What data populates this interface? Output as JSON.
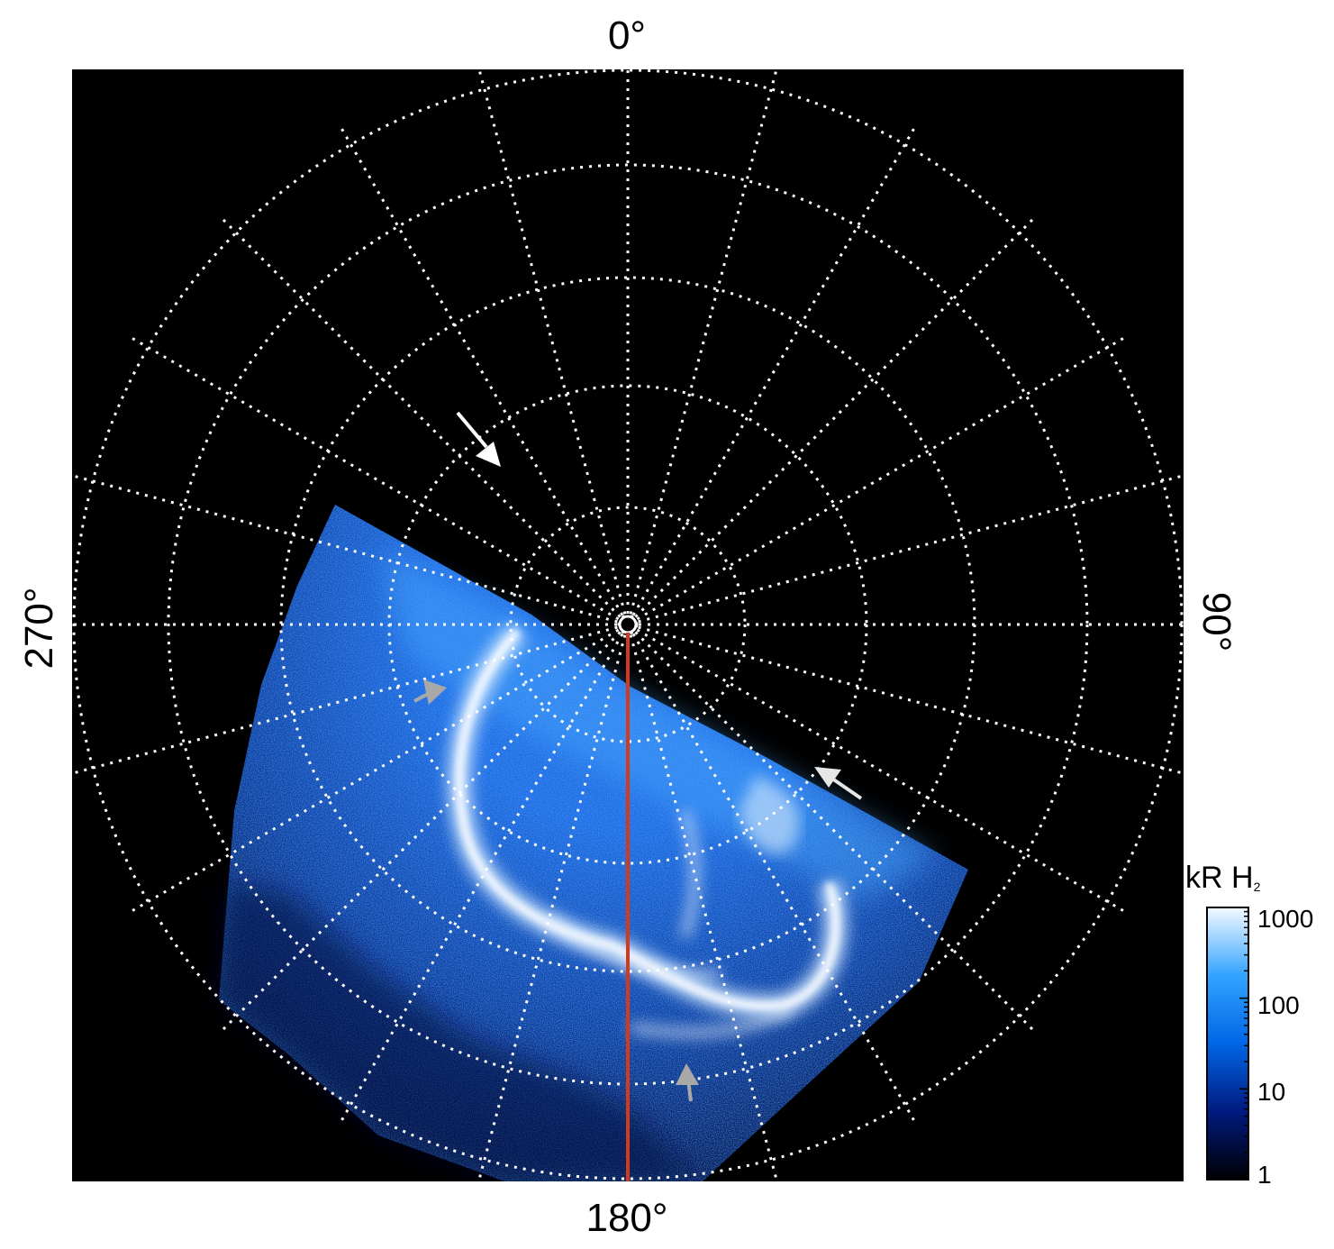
{
  "labels": {
    "top": "0°",
    "right": "90°",
    "bottom": "180°",
    "left": "270°"
  },
  "colorbar": {
    "title": "kR H",
    "subscript": "2",
    "ticks": [
      "1000",
      "100",
      "10",
      "1"
    ],
    "scale": "log",
    "colors": [
      "#000000",
      "#001a80",
      "#0066e6",
      "#33a3ff",
      "#f5faff"
    ]
  },
  "colors": {
    "background": "#000000",
    "grid": "#ffffff",
    "meridian": "#d23a1e",
    "aurora": "#1e78ff",
    "white_arrow": "#ffffff",
    "grey_arrow": "#a8a8a8"
  }
}
